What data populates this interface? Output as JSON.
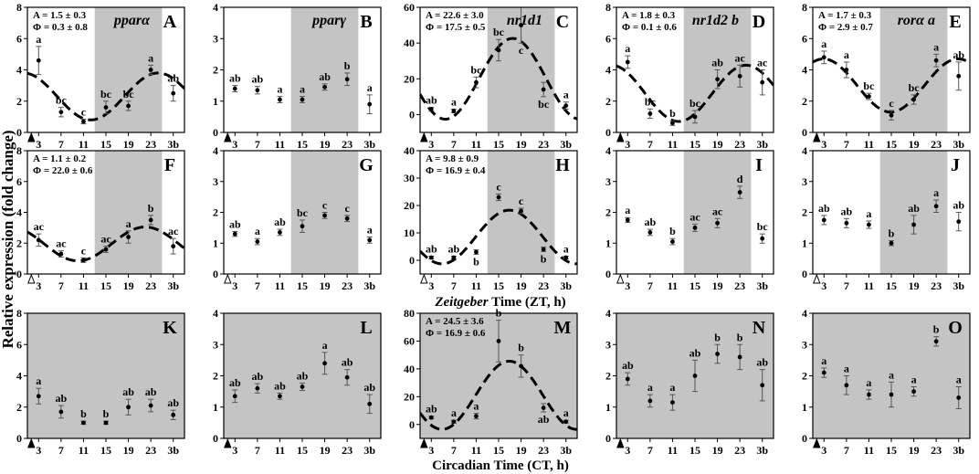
{
  "figure": {
    "y_axis_label": "Relative   expression   (fold   change)",
    "row2_x_label_prefix": "Zeitgeber",
    "row2_x_label_rest": " Time  (ZT,  h)",
    "row3_x_label": "Circadian  Time  (CT,  h)",
    "x_tick_labels": [
      "3",
      "7",
      "11",
      "15",
      "19",
      "23",
      "3b"
    ]
  },
  "colors": {
    "dark_phase": "#c4c4c4",
    "line": "#000000",
    "white": "#ffffff"
  },
  "chart_data": [
    {
      "letter": "A",
      "gene": "pparα",
      "type": "scatter",
      "ylim": [
        0,
        8
      ],
      "yticks": [
        0,
        2,
        4,
        6,
        8
      ],
      "x": [
        "3",
        "7",
        "11",
        "15",
        "19",
        "23",
        "3b"
      ],
      "values": [
        4.6,
        1.3,
        0.7,
        1.6,
        1.7,
        4.0,
        2.5
      ],
      "errors": [
        0.9,
        0.3,
        0.15,
        0.4,
        0.3,
        0.3,
        0.5
      ],
      "labels": [
        "a",
        "bc",
        "c",
        "bc",
        "bc",
        "a",
        "ab"
      ],
      "shade": "dark_hours",
      "marker": "filled",
      "stats": [
        "A = 1.5 ± 0.3",
        "Φ = 0.3 ± 0.8"
      ],
      "cosinor": {
        "mesor": 2.3,
        "amplitude": 1.5,
        "phase": 0.3
      }
    },
    {
      "letter": "B",
      "gene": "pparγ",
      "type": "scatter",
      "ylim": [
        0,
        4
      ],
      "yticks": [
        0,
        1,
        2,
        3,
        4
      ],
      "x": [
        "3",
        "7",
        "11",
        "15",
        "19",
        "23",
        "3b"
      ],
      "values": [
        1.4,
        1.35,
        1.05,
        1.05,
        1.45,
        1.7,
        0.9
      ],
      "errors": [
        0.1,
        0.12,
        0.1,
        0.1,
        0.1,
        0.2,
        0.3
      ],
      "labels": [
        "ab",
        "ab",
        "a",
        "a",
        "ab",
        "b",
        "a"
      ],
      "shade": "dark_hours",
      "marker": "filled"
    },
    {
      "letter": "C",
      "gene": "nr1d1",
      "type": "scatter",
      "ylim": [
        -10,
        60
      ],
      "yticks": [
        0,
        20,
        40,
        60
      ],
      "x": [
        "3",
        "7",
        "11",
        "15",
        "19",
        "23",
        "3b"
      ],
      "values": [
        3,
        2,
        18,
        36,
        50,
        14,
        5
      ],
      "errors": [
        1,
        1,
        3,
        6,
        10,
        4,
        2
      ],
      "labels": [
        "ab",
        "a",
        "bc",
        "bc",
        "c",
        "bc",
        "a"
      ],
      "label_below": [
        false,
        false,
        false,
        false,
        true,
        true,
        false
      ],
      "shade": "dark_hours",
      "marker": "filled",
      "stats": [
        "A = 22.6 ± 3.0",
        "Φ = 17.5 ± 0.5"
      ],
      "cosinor": {
        "mesor": 20,
        "amplitude": 22.6,
        "phase": 17.5
      }
    },
    {
      "letter": "D",
      "gene": "nr1d2 b",
      "type": "scatter",
      "ylim": [
        0,
        8
      ],
      "yticks": [
        0,
        2,
        4,
        6,
        8
      ],
      "x": [
        "3",
        "7",
        "11",
        "15",
        "19",
        "23",
        "3b"
      ],
      "values": [
        4.5,
        1.2,
        0.6,
        1.0,
        3.4,
        3.6,
        3.2
      ],
      "errors": [
        0.4,
        0.3,
        0.15,
        0.4,
        0.6,
        0.7,
        0.8
      ],
      "labels": [
        "a",
        "bc",
        "b",
        "bc",
        "ab",
        "ac",
        "ac"
      ],
      "shade": "dark_hours",
      "marker": "filled",
      "stats": [
        "A = 1.8 ± 0.3",
        "Φ = 0.1 ± 0.6"
      ],
      "cosinor": {
        "mesor": 2.5,
        "amplitude": 1.8,
        "phase": 0.1
      }
    },
    {
      "letter": "E",
      "gene": "rorα a",
      "type": "scatter",
      "ylim": [
        0,
        8
      ],
      "yticks": [
        0,
        2,
        4,
        6,
        8
      ],
      "x": [
        "3",
        "7",
        "11",
        "15",
        "19",
        "23",
        "3b"
      ],
      "values": [
        4.8,
        4.0,
        2.3,
        1.1,
        2.1,
        4.6,
        3.6
      ],
      "errors": [
        0.4,
        0.5,
        0.2,
        0.3,
        0.3,
        0.4,
        0.9
      ],
      "labels": [
        "a",
        "a",
        "bc",
        "c",
        "bc",
        "a",
        "ab"
      ],
      "shade": "dark_hours",
      "marker": "filled",
      "stats": [
        "A = 1.7 ± 0.3",
        "Φ = 2.9 ± 0.7"
      ],
      "cosinor": {
        "mesor": 3.0,
        "amplitude": 1.7,
        "phase": 2.9
      }
    },
    {
      "letter": "F",
      "gene": "",
      "type": "scatter",
      "ylim": [
        0,
        8
      ],
      "yticks": [
        0,
        2,
        4,
        6,
        8
      ],
      "x": [
        "3",
        "7",
        "11",
        "15",
        "19",
        "23",
        "3b"
      ],
      "values": [
        2.2,
        1.3,
        0.9,
        1.6,
        2.4,
        3.5,
        1.8
      ],
      "errors": [
        0.4,
        0.2,
        0.15,
        0.2,
        0.4,
        0.3,
        0.5
      ],
      "labels": [
        "ac",
        "ac",
        "c",
        "ac",
        "a",
        "b",
        "ac"
      ],
      "shade": "dark_hours",
      "marker": "open",
      "stats": [
        "A = 1.1 ± 0.2",
        "Φ = 22.0 ± 0.6"
      ],
      "cosinor": {
        "mesor": 1.95,
        "amplitude": 1.1,
        "phase": 22.0
      }
    },
    {
      "letter": "G",
      "gene": "",
      "type": "scatter",
      "ylim": [
        0,
        4
      ],
      "yticks": [
        0,
        1,
        2,
        3,
        4
      ],
      "x": [
        "3",
        "7",
        "11",
        "15",
        "19",
        "23",
        "3b"
      ],
      "values": [
        1.3,
        1.05,
        1.35,
        1.55,
        1.9,
        1.8,
        1.1
      ],
      "errors": [
        0.08,
        0.1,
        0.1,
        0.2,
        0.1,
        0.1,
        0.1
      ],
      "labels": [
        "ab",
        "a",
        "ab",
        "bc",
        "c",
        "c",
        "a"
      ],
      "shade": "dark_hours",
      "marker": "open"
    },
    {
      "letter": "H",
      "gene": "",
      "type": "scatter",
      "ylim": [
        -5,
        40
      ],
      "yticks": [
        0,
        10,
        20,
        30,
        40
      ],
      "x": [
        "3",
        "7",
        "11",
        "15",
        "19",
        "23",
        "3b"
      ],
      "values": [
        1,
        1,
        3,
        23,
        18,
        4,
        1
      ],
      "errors": [
        0.5,
        0.5,
        0.8,
        1.2,
        1.0,
        0.8,
        0.5
      ],
      "labels": [
        "ab",
        "ab",
        "b",
        "c",
        "c",
        "b",
        "a"
      ],
      "label_below": [
        false,
        false,
        true,
        false,
        false,
        true,
        false
      ],
      "shade": "dark_hours",
      "marker": "open",
      "stats": [
        "A = 9.8 ± 0.9",
        "Φ = 16.9 ± 0.4"
      ],
      "cosinor": {
        "mesor": 8.5,
        "amplitude": 9.8,
        "phase": 16.9
      }
    },
    {
      "letter": "I",
      "gene": "",
      "type": "scatter",
      "ylim": [
        0,
        4
      ],
      "yticks": [
        0,
        1,
        2,
        3,
        4
      ],
      "x": [
        "3",
        "7",
        "11",
        "15",
        "19",
        "23",
        "3b"
      ],
      "values": [
        1.75,
        1.35,
        1.05,
        1.5,
        1.65,
        2.65,
        1.15
      ],
      "errors": [
        0.08,
        0.1,
        0.1,
        0.12,
        0.15,
        0.2,
        0.15
      ],
      "labels": [
        "a",
        "ab",
        "b",
        "ac",
        "ac",
        "d",
        "bc"
      ],
      "shade": "dark_hours",
      "marker": "open"
    },
    {
      "letter": "J",
      "gene": "",
      "type": "scatter",
      "ylim": [
        0,
        4
      ],
      "yticks": [
        0,
        1,
        2,
        3,
        4
      ],
      "x": [
        "3",
        "7",
        "11",
        "15",
        "19",
        "23",
        "3b"
      ],
      "values": [
        1.75,
        1.65,
        1.6,
        1.0,
        1.6,
        2.2,
        1.7
      ],
      "errors": [
        0.15,
        0.15,
        0.12,
        0.08,
        0.3,
        0.2,
        0.3
      ],
      "labels": [
        "ab",
        "ab",
        "a",
        "b",
        "ab",
        "a",
        "ab"
      ],
      "shade": "dark_hours",
      "marker": "open"
    },
    {
      "letter": "K",
      "gene": "",
      "type": "scatter",
      "ylim": [
        0,
        8
      ],
      "yticks": [
        0,
        2,
        4,
        6,
        8
      ],
      "x": [
        "3",
        "7",
        "11",
        "15",
        "19",
        "23",
        "3b"
      ],
      "values": [
        2.7,
        1.7,
        1.0,
        1.0,
        2.0,
        2.1,
        1.5
      ],
      "errors": [
        0.5,
        0.4,
        0.1,
        0.1,
        0.5,
        0.4,
        0.3
      ],
      "labels": [
        "a",
        "ab",
        "b",
        "b",
        "ab",
        "ab",
        "ab"
      ],
      "shade": "all",
      "marker": "filled"
    },
    {
      "letter": "L",
      "gene": "",
      "type": "scatter",
      "ylim": [
        0,
        4
      ],
      "yticks": [
        0,
        1,
        2,
        3,
        4
      ],
      "x": [
        "3",
        "7",
        "11",
        "15",
        "19",
        "23",
        "3b"
      ],
      "values": [
        1.35,
        1.6,
        1.35,
        1.65,
        2.4,
        1.95,
        1.1
      ],
      "errors": [
        0.2,
        0.15,
        0.1,
        0.12,
        0.35,
        0.25,
        0.3
      ],
      "labels": [
        "ab",
        "ab",
        "ab",
        "ab",
        "a",
        "ab",
        "ab"
      ],
      "shade": "all",
      "marker": "filled"
    },
    {
      "letter": "M",
      "gene": "",
      "type": "scatter",
      "ylim": [
        -10,
        80
      ],
      "yticks": [
        0,
        20,
        40,
        60,
        80
      ],
      "x": [
        "3",
        "7",
        "11",
        "15",
        "19",
        "23",
        "3b"
      ],
      "values": [
        5,
        2,
        6,
        60,
        42,
        12,
        2
      ],
      "errors": [
        1,
        1,
        2,
        15,
        8,
        3,
        1
      ],
      "labels": [
        "ab",
        "a",
        "a",
        "b",
        "b",
        "ab",
        "a"
      ],
      "label_below": [
        false,
        false,
        false,
        false,
        false,
        true,
        false
      ],
      "shade": "all",
      "marker": "filled",
      "stats": [
        "A = 24.5 ± 3.6",
        "Φ = 16.9 ± 0.6"
      ],
      "cosinor": {
        "mesor": 21,
        "amplitude": 24.5,
        "phase": 16.9
      }
    },
    {
      "letter": "N",
      "gene": "",
      "type": "scatter",
      "ylim": [
        0,
        4
      ],
      "yticks": [
        0,
        1,
        2,
        3,
        4
      ],
      "x": [
        "3",
        "7",
        "11",
        "15",
        "19",
        "23",
        "3b"
      ],
      "values": [
        1.9,
        1.2,
        1.15,
        2.0,
        2.7,
        2.6,
        1.7
      ],
      "errors": [
        0.2,
        0.2,
        0.25,
        0.5,
        0.3,
        0.4,
        0.5
      ],
      "labels": [
        "ab",
        "a",
        "a",
        "ab",
        "b",
        "b",
        "ab"
      ],
      "shade": "all",
      "marker": "filled"
    },
    {
      "letter": "O",
      "gene": "",
      "type": "scatter",
      "ylim": [
        0,
        4
      ],
      "yticks": [
        0,
        1,
        2,
        3,
        4
      ],
      "x": [
        "3",
        "7",
        "11",
        "15",
        "19",
        "23",
        "3b"
      ],
      "values": [
        2.1,
        1.7,
        1.4,
        1.4,
        1.5,
        3.1,
        1.3
      ],
      "errors": [
        0.15,
        0.3,
        0.15,
        0.4,
        0.15,
        0.15,
        0.35
      ],
      "labels": [
        "a",
        "a",
        "a",
        "a",
        "a",
        "b",
        "a"
      ],
      "shade": "all",
      "marker": "filled"
    }
  ]
}
